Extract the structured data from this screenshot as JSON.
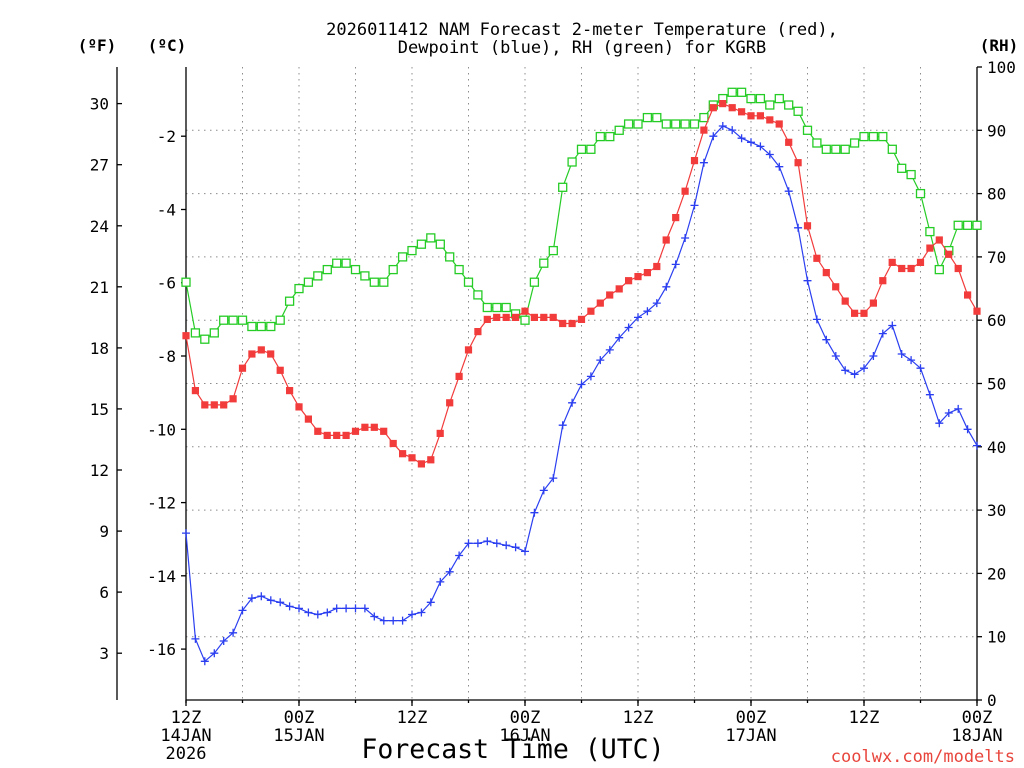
{
  "chart_data": {
    "type": "line",
    "title": [
      "2026011412 NAM Forecast 2-meter Temperature (red),",
      "Dewpoint (blue), RH (green) for KGRB"
    ],
    "xlabel": "Forecast Time (UTC)",
    "xlim": [
      0,
      84
    ],
    "grid": true,
    "grid_x_step_hours": 6,
    "x_hours": [
      0,
      1,
      2,
      3,
      4,
      5,
      6,
      7,
      8,
      9,
      10,
      11,
      12,
      13,
      14,
      15,
      16,
      17,
      18,
      19,
      20,
      21,
      22,
      23,
      24,
      25,
      26,
      27,
      28,
      29,
      30,
      31,
      32,
      33,
      34,
      35,
      36,
      37,
      38,
      39,
      40,
      41,
      42,
      43,
      44,
      45,
      46,
      47,
      48,
      49,
      50,
      51,
      52,
      53,
      54,
      55,
      56,
      57,
      58,
      59,
      60,
      61,
      62,
      63,
      64,
      65,
      66,
      67,
      68,
      69,
      70,
      71,
      72,
      73,
      74,
      75,
      76,
      77,
      78,
      79,
      80,
      81,
      82,
      83,
      84
    ],
    "x_ticks": [
      {
        "hour": 0,
        "label": [
          "12Z",
          "14JAN",
          "2026"
        ]
      },
      {
        "hour": 12,
        "label": [
          "00Z",
          "15JAN"
        ]
      },
      {
        "hour": 24,
        "label": [
          "12Z"
        ]
      },
      {
        "hour": 36,
        "label": [
          "00Z",
          "16JAN"
        ]
      },
      {
        "hour": 48,
        "label": [
          "12Z"
        ]
      },
      {
        "hour": 60,
        "label": [
          "00Z",
          "17JAN"
        ]
      },
      {
        "hour": 72,
        "label": [
          "12Z"
        ]
      },
      {
        "hour": 84,
        "label": [
          "00Z",
          "18JAN"
        ]
      }
    ],
    "axes": {
      "fahrenheit": {
        "label": "(ºF)",
        "range": [
          0.7,
          31.8
        ],
        "ticks": [
          30,
          27,
          24,
          21,
          18,
          15,
          12,
          9,
          6,
          3
        ]
      },
      "celsius": {
        "label": "(ºC)",
        "ticks": [
          -2,
          -4,
          -6,
          -8,
          -10,
          -12,
          -14,
          -16
        ]
      },
      "rh": {
        "label": "(RH)",
        "range": [
          0,
          100
        ],
        "ticks": [
          100,
          90,
          80,
          70,
          60,
          50,
          40,
          30,
          20,
          10,
          0
        ]
      }
    },
    "series": {
      "rh_percent": {
        "color": "#26cc26",
        "values": [
          66,
          58,
          57,
          58,
          60,
          60,
          60,
          59,
          59,
          59,
          60,
          63,
          65,
          66,
          67,
          68,
          69,
          69,
          68,
          67,
          66,
          66,
          68,
          70,
          71,
          72,
          73,
          72,
          70,
          68,
          66,
          64,
          62,
          62,
          62,
          61,
          60,
          66,
          69,
          71,
          81,
          85,
          87,
          87,
          89,
          89,
          90,
          91,
          91,
          92,
          92,
          91,
          91,
          91,
          91,
          92,
          94,
          95,
          96,
          96,
          95,
          95,
          94,
          95,
          94,
          93,
          90,
          88,
          87,
          87,
          87,
          88,
          89,
          89,
          89,
          87,
          84,
          83,
          80,
          74,
          68,
          71,
          75,
          75,
          75
        ]
      },
      "temperature_f": {
        "color": "#f23b3b",
        "values": [
          18.6,
          15.9,
          15.2,
          15.2,
          15.2,
          15.5,
          17.0,
          17.7,
          17.9,
          17.7,
          16.9,
          15.9,
          15.1,
          14.5,
          13.9,
          13.7,
          13.7,
          13.7,
          13.9,
          14.1,
          14.1,
          13.9,
          13.3,
          12.8,
          12.6,
          12.3,
          12.5,
          13.8,
          15.3,
          16.6,
          17.9,
          18.8,
          19.4,
          19.5,
          19.5,
          19.5,
          19.8,
          19.5,
          19.5,
          19.5,
          19.2,
          19.2,
          19.4,
          19.8,
          20.2,
          20.6,
          20.9,
          21.3,
          21.5,
          21.7,
          22.0,
          23.3,
          24.4,
          25.7,
          27.2,
          28.7,
          29.8,
          30.0,
          29.8,
          29.6,
          29.4,
          29.4,
          29.2,
          29.0,
          28.1,
          27.1,
          24.0,
          22.4,
          21.7,
          21.0,
          20.3,
          19.7,
          19.7,
          20.2,
          21.3,
          22.2,
          21.9,
          21.9,
          22.2,
          22.9,
          23.3,
          22.6,
          21.9,
          20.6,
          19.8
        ]
      },
      "dewpoint_f": {
        "color": "#2b3ff0",
        "values": [
          8.9,
          3.7,
          2.6,
          3.0,
          3.6,
          4.0,
          5.1,
          5.7,
          5.8,
          5.6,
          5.5,
          5.3,
          5.2,
          5.0,
          4.9,
          5.0,
          5.2,
          5.2,
          5.2,
          5.2,
          4.8,
          4.6,
          4.6,
          4.6,
          4.9,
          5.0,
          5.5,
          6.5,
          7.0,
          7.8,
          8.4,
          8.4,
          8.5,
          8.4,
          8.3,
          8.2,
          8.0,
          9.9,
          11.0,
          11.6,
          14.2,
          15.3,
          16.2,
          16.6,
          17.4,
          17.9,
          18.5,
          19.0,
          19.5,
          19.8,
          20.2,
          21.0,
          22.1,
          23.4,
          25.0,
          27.1,
          28.4,
          28.9,
          28.7,
          28.3,
          28.1,
          27.9,
          27.5,
          26.9,
          25.7,
          23.9,
          21.3,
          19.4,
          18.4,
          17.6,
          16.9,
          16.7,
          17.0,
          17.6,
          18.7,
          19.1,
          17.7,
          17.4,
          17.0,
          15.7,
          14.3,
          14.8,
          15.0,
          14.0,
          13.2
        ]
      }
    }
  },
  "footer": {
    "credit": "coolwx.com/modelts",
    "credit_color": "#e8453c"
  }
}
